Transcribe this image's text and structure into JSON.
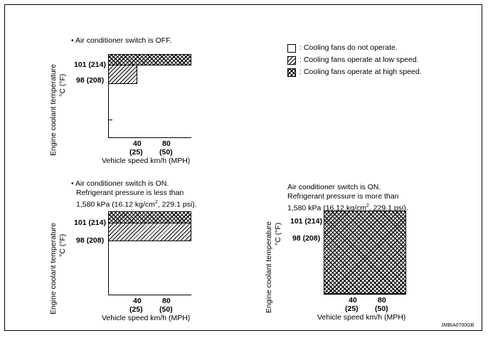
{
  "legend": {
    "none": ": Cooling fans do not operate.",
    "low": ": Cooling fans operate at low speed.",
    "high": ": Cooling fans operate at high speed."
  },
  "common": {
    "y_axis_label_line1": "Engine coolant temperature",
    "y_axis_label_line2": "°C (°F)",
    "y_tick_101": "101 (214)",
    "y_tick_98": "98 (208)",
    "x_tick_40": "40",
    "x_tick_40_mph": "(25)",
    "x_tick_80": "80",
    "x_tick_80_mph": "(50)",
    "x_axis_label": "Vehicle speed km/h (MPH)"
  },
  "panels": {
    "off": {
      "condition": "• Air conditioner switch is OFF."
    },
    "on_low": {
      "condition_line1": "• Air conditioner switch is ON.",
      "condition_line2": "Refrigerant pressure is less than",
      "condition_line3_a": "1,580 kPa (16.12 kg/cm",
      "condition_line3_sup": "2",
      "condition_line3_b": ", 229.1 psi)."
    },
    "on_high": {
      "condition_line1": "Air conditioner switch is ON.",
      "condition_line2": "Refrigerant pressure is more than",
      "condition_line3_a": "1,580 kPa (16.12 kg/cm",
      "condition_line3_sup": "2",
      "condition_line3_b": ", 229.1 psi)."
    }
  },
  "figure_code": "JMBIA0700GB"
}
